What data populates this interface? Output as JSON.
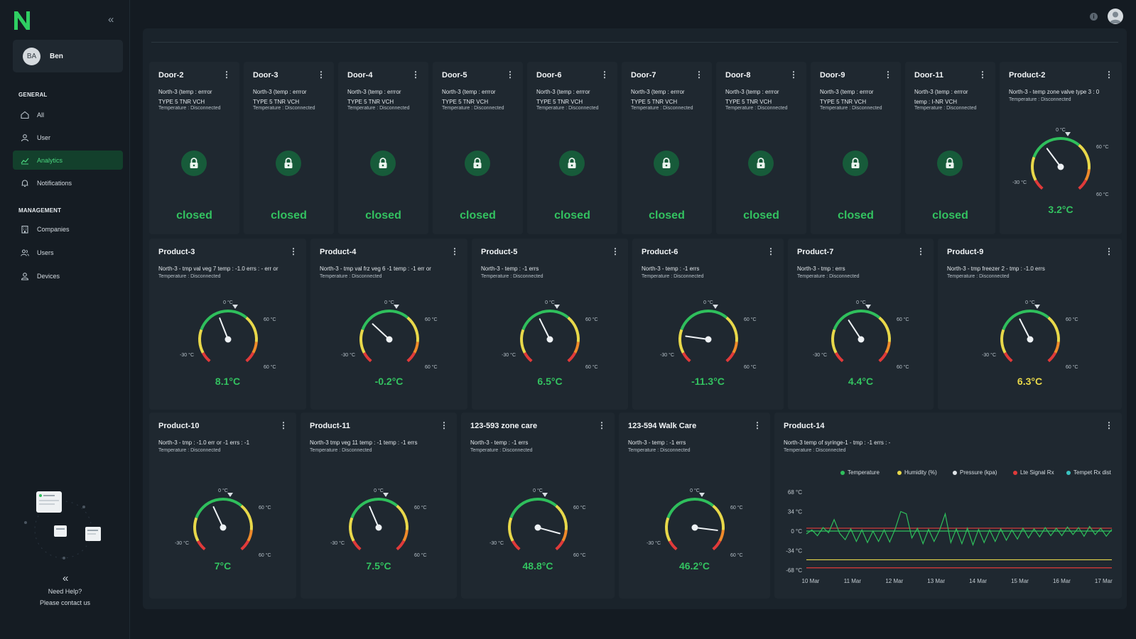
{
  "sidebar": {
    "user": {
      "initials": "BA",
      "name": "Ben"
    },
    "sections": [
      {
        "title": "GENERAL",
        "items": [
          {
            "label": "All",
            "icon": "home-icon",
            "active": false
          },
          {
            "label": "User",
            "icon": "user-icon",
            "active": false
          },
          {
            "label": "Analytics",
            "icon": "chart-icon",
            "active": true
          },
          {
            "label": "Notifications",
            "icon": "bell-icon",
            "active": false
          }
        ]
      },
      {
        "title": "MANAGEMENT",
        "items": [
          {
            "label": "Companies",
            "icon": "building-icon",
            "active": false
          },
          {
            "label": "Users",
            "icon": "users-icon",
            "active": false
          },
          {
            "label": "Devices",
            "icon": "device-icon",
            "active": false
          }
        ]
      }
    ],
    "help": {
      "line1": "Need Help?",
      "line2": "Please contact us"
    }
  },
  "colors": {
    "accent": "#33c260",
    "active_bg": "#13402c",
    "warn_value": "#e8d84a"
  },
  "doors": [
    {
      "title": "Door-2",
      "line1": "North-3 (temp : errror",
      "line2": "TYPE 5 TNR VCH",
      "temperature": "Temperature : Disconnected",
      "status": "closed"
    },
    {
      "title": "Door-3",
      "line1": "North-3 (temp : errror",
      "line2": "TYPE 5 TNR VCH",
      "temperature": "Temperature : Disconnected",
      "status": "closed"
    },
    {
      "title": "Door-4",
      "line1": "North-3 (temp : errror",
      "line2": "TYPE 5 TNR VCH",
      "temperature": "Temperature : Disconnected",
      "status": "closed"
    },
    {
      "title": "Door-5",
      "line1": "North-3 (temp : errror",
      "line2": "TYPE 5 TNR VCH",
      "temperature": "Temperature : Disconnected",
      "status": "closed"
    },
    {
      "title": "Door-6",
      "line1": "North-3 (temp : errror",
      "line2": "TYPE 5 TNR VCH",
      "temperature": "Temperature : Disconnected",
      "status": "closed"
    },
    {
      "title": "Door-7",
      "line1": "North-3 (temp : errror",
      "line2": "TYPE 5 TNR VCH",
      "temperature": "Temperature : Disconnected",
      "status": "closed"
    },
    {
      "title": "Door-8",
      "line1": "North-3 (temp : errror",
      "line2": "TYPE 5 TNR VCH",
      "temperature": "Temperature : Disconnected",
      "status": "closed"
    },
    {
      "title": "Door-9",
      "line1": "North-3 (temp : errror",
      "line2": "TYPE 5 TNR VCH",
      "temperature": "Temperature : Disconnected",
      "status": "closed"
    },
    {
      "title": "Door-11",
      "line1": "North-3 (temp : errror",
      "line2": "temp : I-NR VCH",
      "temperature": "Temperature : Disconnected",
      "status": "closed"
    }
  ],
  "gauge_labels": {
    "top": "0 °C",
    "right": "60 °C",
    "left": "-30 °C",
    "bottom_right": "60 °C"
  },
  "products": [
    {
      "title": "Product-2",
      "line1": "North-3 - temp zone valve type 3 : 0",
      "temperature": "Temperature : Disconnected",
      "value": 3.2,
      "display": "3.2°C",
      "warn": false
    },
    {
      "title": "Product-3",
      "line1": "North-3 - tmp val veg 7 temp : -1.0 errs : - err or",
      "temperature": "Temperature : Disconnected",
      "value": 8.1,
      "display": "8.1°C",
      "warn": false
    },
    {
      "title": "Product-4",
      "line1": "North-3 - tmp val frz veg 6 -1 temp : -1 err or",
      "temperature": "Temperature : Disconnected",
      "value": -0.2,
      "display": "-0.2°C",
      "warn": false
    },
    {
      "title": "Product-5",
      "line1": "North-3 - temp : -1 errs",
      "temperature": "Temperature : Disconnected",
      "value": 6.5,
      "display": "6.5°C",
      "warn": false
    },
    {
      "title": "Product-6",
      "line1": "North-3 - temp : -1 errs",
      "temperature": "Temperature : Disconnected",
      "value": -11.3,
      "display": "-11.3°C",
      "warn": false
    },
    {
      "title": "Product-7",
      "line1": "North-3 - tmp : errs",
      "temperature": "Temperature : Disconnected",
      "value": 4.4,
      "display": "4.4°C",
      "warn": false
    },
    {
      "title": "Product-9",
      "line1": "North-3 - tmp freezer 2 - tmp : -1.0 errs",
      "temperature": "Temperature : Disconnected",
      "value": 6.3,
      "display": "6.3°C",
      "warn": true
    },
    {
      "title": "Product-10",
      "line1": "North-3 - tmp : -1.0 err or -1 errs : -1",
      "temperature": "Temperature : Disconnected",
      "value": 7,
      "display": "7°C",
      "warn": false
    },
    {
      "title": "Product-11",
      "line1": "North-3 tmp veg 11 temp : -1 temp : -1 errs",
      "temperature": "Temperature : Disconnected",
      "value": 7.5,
      "display": "7.5°C",
      "warn": false
    },
    {
      "title": "123-593 zone care",
      "line1": "North-3 - temp : -1 errs",
      "temperature": "Temperature : Disconnected",
      "value": 48.8,
      "display": "48.8°C",
      "warn": false
    },
    {
      "title": "123-594 Walk Care",
      "line1": "North-3 - temp : -1 errs",
      "temperature": "Temperature : Disconnected",
      "value": 46.2,
      "display": "46.2°C",
      "warn": false
    }
  ],
  "chart_card": {
    "title": "Product-14",
    "line1": "North-3 temp of syringe-1 - tmp : -1 errs : -",
    "temperature": "Temperature : Disconnected"
  },
  "chart_data": {
    "type": "line",
    "legend": [
      {
        "name": "Temperature",
        "color": "#2fbf5c"
      },
      {
        "name": "Humidity (%)",
        "color": "#e8d84a"
      },
      {
        "name": "Pressure (kpa)",
        "color": "#dfe4e8"
      },
      {
        "name": "Lte Signal Rx",
        "color": "#e03a3a"
      },
      {
        "name": "Tempet Rx dist",
        "color": "#3ac2c0"
      }
    ],
    "legend_position": "top",
    "y_ticks": [
      "68 °C",
      "34 °C",
      "0 °C",
      "-34 °C",
      "-68 °C"
    ],
    "y_tick_values": [
      68,
      34,
      0,
      -34,
      -68
    ],
    "ylim": [
      -68,
      68
    ],
    "x_ticks": [
      "10 Mar",
      "11 Mar",
      "12 Mar",
      "13 Mar",
      "14 Mar",
      "15 Mar",
      "16 Mar",
      "17 Mar"
    ],
    "reference_lines": [
      {
        "name": "upper-red-limit",
        "color": "#e03a3a",
        "value": 5
      },
      {
        "name": "green-baseline",
        "color": "#2fbf5c",
        "value": 0
      },
      {
        "name": "yellow-limit",
        "color": "#e8d84a",
        "value": -50
      },
      {
        "name": "lower-red-limit",
        "color": "#e03a3a",
        "value": -64
      }
    ],
    "series": [
      {
        "color": "#2fbf5c",
        "x_start": 10,
        "x_end": 17.3,
        "values": [
          -5,
          2,
          -8,
          6,
          -3,
          20,
          -4,
          -15,
          4,
          -18,
          2,
          -20,
          0,
          -18,
          2,
          -19,
          4,
          34,
          30,
          -12,
          5,
          -22,
          3,
          -18,
          2,
          30,
          -20,
          4,
          -22,
          5,
          -24,
          3,
          -20,
          2,
          -18,
          4,
          -16,
          2,
          -14,
          5,
          -12,
          4,
          -10,
          6,
          -8,
          5,
          -8,
          7,
          -6,
          6,
          -9,
          8,
          -6,
          5,
          -9,
          3
        ]
      }
    ]
  }
}
